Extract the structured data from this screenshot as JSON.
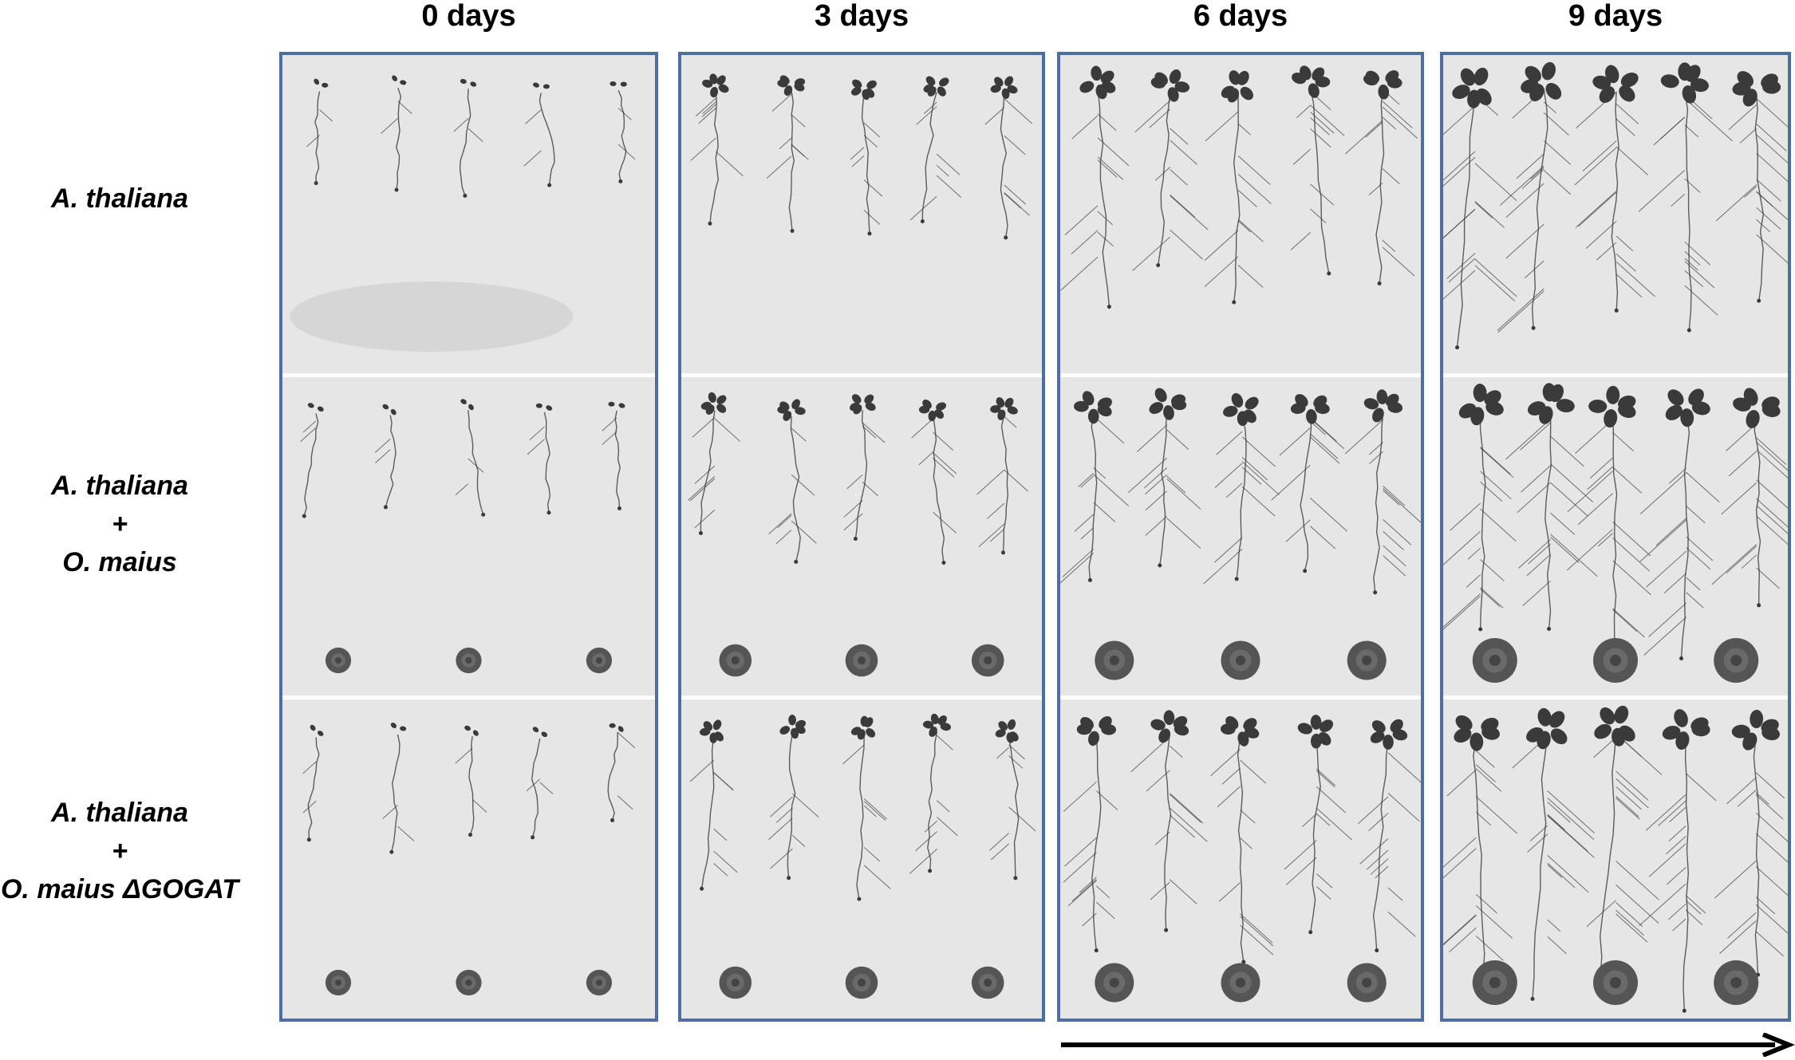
{
  "columns": [
    {
      "label": "0 days"
    },
    {
      "label": "3 days"
    },
    {
      "label": "6 days"
    },
    {
      "label": "9 days"
    }
  ],
  "rows": [
    {
      "lines": [
        "A. thaliana"
      ]
    },
    {
      "lines": [
        "A. thaliana",
        "+",
        "O. maius"
      ]
    },
    {
      "lines": [
        "A. thaliana",
        "+",
        "O. maius ΔGOGAT"
      ]
    }
  ],
  "colors": {
    "frame": "#4a6fa0",
    "plate_background": "#e6e6e6",
    "plant": "#3a3a3a",
    "fungus_colony": "#555555",
    "arrow": "#000000"
  }
}
